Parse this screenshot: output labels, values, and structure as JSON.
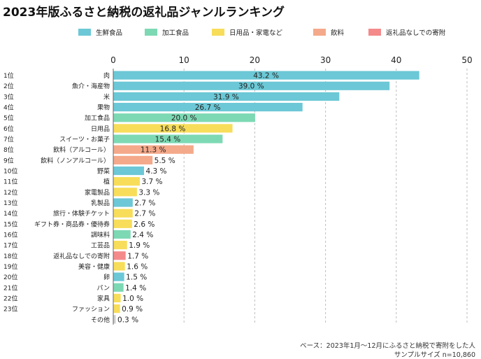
{
  "title": "2023年版ふるさと納税の返礼品ジャンルランキング",
  "footnote": {
    "line1": "ベース：2023年1月～12月にふるさと納税で寄附をした人",
    "line2": "サンプルサイズ n=10,860"
  },
  "colors": {
    "生鮮食品": "#6cc8d6",
    "加工食品": "#7dd9b4",
    "日用品・家電など": "#f7dd5a",
    "飲料": "#f4a98a",
    "返礼品なしでの寄附": "#f48a8a",
    "gray": "#cfcfcf"
  },
  "chart_data": {
    "type": "bar",
    "orientation": "horizontal",
    "title": "2023年版ふるさと納税の返礼品ジャンルランキング",
    "xlim": [
      0,
      50
    ],
    "xticks": [
      0,
      10,
      20,
      30,
      40,
      50
    ],
    "grid": true,
    "legend": [
      "生鮮食品",
      "加工食品",
      "日用品・家電など",
      "飲料",
      "返礼品なしでの寄附"
    ],
    "legend_position": "top",
    "value_suffix": " %",
    "items": [
      {
        "rank": "1位",
        "label": "肉",
        "value": 43.2,
        "group": "生鮮食品"
      },
      {
        "rank": "2位",
        "label": "魚介・海産物",
        "value": 39.0,
        "group": "生鮮食品"
      },
      {
        "rank": "3位",
        "label": "米",
        "value": 31.9,
        "group": "生鮮食品"
      },
      {
        "rank": "4位",
        "label": "果物",
        "value": 26.7,
        "group": "生鮮食品"
      },
      {
        "rank": "5位",
        "label": "加工食品",
        "value": 20.0,
        "group": "加工食品"
      },
      {
        "rank": "6位",
        "label": "日用品",
        "value": 16.8,
        "group": "日用品・家電など"
      },
      {
        "rank": "7位",
        "label": "スイーツ・お菓子",
        "value": 15.4,
        "group": "加工食品"
      },
      {
        "rank": "8位",
        "label": "飲料（アルコール）",
        "value": 11.3,
        "group": "飲料"
      },
      {
        "rank": "9位",
        "label": "飲料（ノンアルコール）",
        "value": 5.5,
        "group": "飲料"
      },
      {
        "rank": "10位",
        "label": "野菜",
        "value": 4.3,
        "group": "生鮮食品"
      },
      {
        "rank": "11位",
        "label": "植",
        "value": 3.7,
        "group": "日用品・家電など"
      },
      {
        "rank": "12位",
        "label": "家電製品",
        "value": 3.3,
        "group": "日用品・家電など"
      },
      {
        "rank": "13位",
        "label": "乳製品",
        "value": 2.7,
        "group": "生鮮食品"
      },
      {
        "rank": "14位",
        "label": "旅行・体験チケット",
        "value": 2.7,
        "group": "日用品・家電など"
      },
      {
        "rank": "15位",
        "label": "ギフト券・商品券・優待券",
        "value": 2.6,
        "group": "日用品・家電など"
      },
      {
        "rank": "16位",
        "label": "調味料",
        "value": 2.4,
        "group": "加工食品"
      },
      {
        "rank": "17位",
        "label": "工芸品",
        "value": 1.9,
        "group": "日用品・家電など"
      },
      {
        "rank": "18位",
        "label": "返礼品なしでの寄附",
        "value": 1.7,
        "group": "返礼品なしでの寄附"
      },
      {
        "rank": "19位",
        "label": "美容・健康",
        "value": 1.6,
        "group": "日用品・家電など"
      },
      {
        "rank": "20位",
        "label": "卵",
        "value": 1.5,
        "group": "生鮮食品"
      },
      {
        "rank": "21位",
        "label": "パン",
        "value": 1.4,
        "group": "加工食品"
      },
      {
        "rank": "22位",
        "label": "家具",
        "value": 1.0,
        "group": "日用品・家電など"
      },
      {
        "rank": "23位",
        "label": "ファッション",
        "value": 0.9,
        "group": "日用品・家電など"
      },
      {
        "rank": "",
        "label": "その他",
        "value": 0.3,
        "group": "gray"
      }
    ]
  }
}
